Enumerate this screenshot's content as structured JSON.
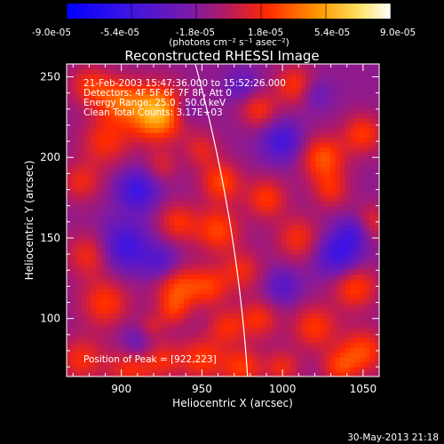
{
  "colorbar": {
    "tick_labels": [
      "-9.0e-05",
      "-5.4e-05",
      "-1.8e-05",
      "1.8e-05",
      "5.4e-05",
      "9.0e-05"
    ],
    "unit_label": "(photons cm⁻² s⁻¹ asec⁻²)"
  },
  "chart_data": {
    "type": "heatmap",
    "title": "Reconstructed RHESSI Image",
    "xlabel": "Heliocentric X (arcsec)",
    "ylabel": "Heliocentric Y (arcsec)",
    "xlim": [
      866,
      1060
    ],
    "ylim": [
      64,
      258
    ],
    "x_ticks": [
      900,
      950,
      1000,
      1050
    ],
    "y_ticks": [
      100,
      150,
      200,
      250
    ],
    "color_range": [
      -9e-05,
      9e-05
    ],
    "annotations": [
      "21-Feb-2003 15:47:36.000 to 15:52:26.000",
      "Detectors: 4F 5F 6F 7F 8F, Att 0",
      "Energy Range: 25.0 - 50.0 keV",
      "Clean    Total Counts: 3.17E+03"
    ],
    "peak_label": "Position of Peak = [922,223]",
    "peak": [
      922,
      223
    ],
    "blobs": [
      {
        "x": 922,
        "y": 228,
        "s": 12,
        "a": 1.0
      },
      {
        "x": 898,
        "y": 236,
        "s": 10,
        "a": 0.55
      },
      {
        "x": 880,
        "y": 245,
        "s": 9,
        "a": 0.45
      },
      {
        "x": 890,
        "y": 210,
        "s": 11,
        "a": 0.45
      },
      {
        "x": 875,
        "y": 185,
        "s": 9,
        "a": 0.4
      },
      {
        "x": 880,
        "y": 140,
        "s": 10,
        "a": 0.45
      },
      {
        "x": 890,
        "y": 110,
        "s": 11,
        "a": 0.5
      },
      {
        "x": 875,
        "y": 75,
        "s": 10,
        "a": 0.45
      },
      {
        "x": 905,
        "y": 70,
        "s": 10,
        "a": 0.45
      },
      {
        "x": 925,
        "y": 75,
        "s": 9,
        "a": 0.4
      },
      {
        "x": 935,
        "y": 120,
        "s": 10,
        "a": 0.55
      },
      {
        "x": 932,
        "y": 105,
        "s": 7,
        "a": 0.35
      },
      {
        "x": 935,
        "y": 160,
        "s": 9,
        "a": 0.45
      },
      {
        "x": 925,
        "y": 195,
        "s": 7,
        "a": 0.3
      },
      {
        "x": 950,
        "y": 205,
        "s": 8,
        "a": 0.35
      },
      {
        "x": 962,
        "y": 185,
        "s": 9,
        "a": 0.55
      },
      {
        "x": 960,
        "y": 155,
        "s": 10,
        "a": 0.55
      },
      {
        "x": 955,
        "y": 120,
        "s": 9,
        "a": 0.45
      },
      {
        "x": 965,
        "y": 95,
        "s": 8,
        "a": 0.4
      },
      {
        "x": 950,
        "y": 75,
        "s": 10,
        "a": 0.5
      },
      {
        "x": 975,
        "y": 70,
        "s": 9,
        "a": 0.5
      },
      {
        "x": 985,
        "y": 100,
        "s": 9,
        "a": 0.45
      },
      {
        "x": 975,
        "y": 130,
        "s": 9,
        "a": 0.4
      },
      {
        "x": 990,
        "y": 175,
        "s": 9,
        "a": 0.5
      },
      {
        "x": 985,
        "y": 230,
        "s": 8,
        "a": 0.45
      },
      {
        "x": 1008,
        "y": 245,
        "s": 9,
        "a": 0.5
      },
      {
        "x": 1025,
        "y": 200,
        "s": 10,
        "a": 0.6
      },
      {
        "x": 1030,
        "y": 180,
        "s": 8,
        "a": 0.4
      },
      {
        "x": 1050,
        "y": 215,
        "s": 9,
        "a": 0.5
      },
      {
        "x": 1010,
        "y": 150,
        "s": 10,
        "a": 0.45
      },
      {
        "x": 1045,
        "y": 120,
        "s": 10,
        "a": 0.55
      },
      {
        "x": 1020,
        "y": 95,
        "s": 10,
        "a": 0.5
      },
      {
        "x": 1050,
        "y": 80,
        "s": 10,
        "a": 0.55
      },
      {
        "x": 1035,
        "y": 70,
        "s": 8,
        "a": 0.45
      },
      {
        "x": 1055,
        "y": 160,
        "s": 8,
        "a": 0.4
      },
      {
        "x": 1000,
        "y": 70,
        "s": 8,
        "a": 0.4
      },
      {
        "x": 918,
        "y": 95,
        "s": 6,
        "a": 0.3
      },
      {
        "x": 910,
        "y": 180,
        "s": 9,
        "a": -0.55
      },
      {
        "x": 902,
        "y": 145,
        "s": 11,
        "a": -0.55
      },
      {
        "x": 925,
        "y": 135,
        "s": 8,
        "a": -0.4
      },
      {
        "x": 1035,
        "y": 140,
        "s": 10,
        "a": -0.6
      },
      {
        "x": 1045,
        "y": 155,
        "s": 7,
        "a": -0.4
      },
      {
        "x": 1000,
        "y": 210,
        "s": 9,
        "a": -0.5
      },
      {
        "x": 975,
        "y": 245,
        "s": 7,
        "a": -0.3
      },
      {
        "x": 940,
        "y": 230,
        "s": 6,
        "a": -0.3
      },
      {
        "x": 910,
        "y": 85,
        "s": 8,
        "a": -0.35
      },
      {
        "x": 1000,
        "y": 120,
        "s": 8,
        "a": -0.35
      },
      {
        "x": 1020,
        "y": 240,
        "s": 7,
        "a": -0.3
      }
    ],
    "limb": {
      "r": 980.4,
      "cx": 0,
      "cy": 0
    }
  },
  "footer": {
    "timestamp": "30-May-2013 21:18"
  }
}
